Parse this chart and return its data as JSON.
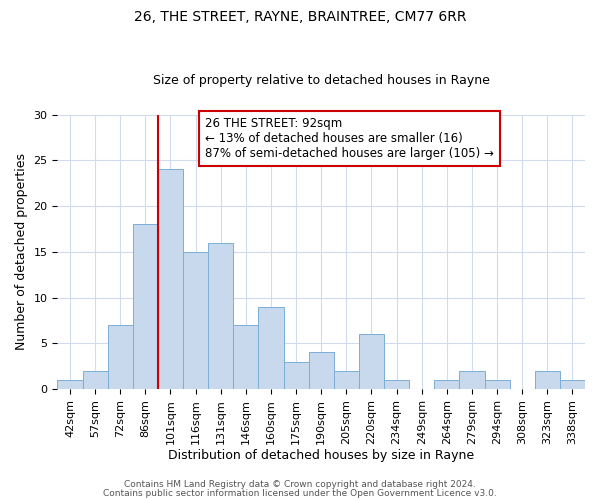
{
  "title": "26, THE STREET, RAYNE, BRAINTREE, CM77 6RR",
  "subtitle": "Size of property relative to detached houses in Rayne",
  "xlabel": "Distribution of detached houses by size in Rayne",
  "ylabel": "Number of detached properties",
  "bar_labels": [
    "42sqm",
    "57sqm",
    "72sqm",
    "86sqm",
    "101sqm",
    "116sqm",
    "131sqm",
    "146sqm",
    "160sqm",
    "175sqm",
    "190sqm",
    "205sqm",
    "220sqm",
    "234sqm",
    "249sqm",
    "264sqm",
    "279sqm",
    "294sqm",
    "308sqm",
    "323sqm",
    "338sqm"
  ],
  "bar_values": [
    1,
    2,
    7,
    18,
    24,
    15,
    16,
    7,
    9,
    3,
    4,
    2,
    6,
    1,
    0,
    1,
    2,
    1,
    0,
    2,
    1
  ],
  "bar_color": "#c8d9ed",
  "bar_edgecolor": "#7bafd4",
  "vline_bar_index": 4,
  "vline_color": "#cc0000",
  "annotation_line1": "26 THE STREET: 92sqm",
  "annotation_line2": "← 13% of detached houses are smaller (16)",
  "annotation_line3": "87% of semi-detached houses are larger (105) →",
  "annotation_box_edgecolor": "#cc0000",
  "ylim": [
    0,
    30
  ],
  "yticks": [
    0,
    5,
    10,
    15,
    20,
    25,
    30
  ],
  "footer1": "Contains HM Land Registry data © Crown copyright and database right 2024.",
  "footer2": "Contains public sector information licensed under the Open Government Licence v3.0.",
  "background_color": "#ffffff",
  "grid_color": "#d0dced",
  "title_fontsize": 10,
  "subtitle_fontsize": 9,
  "axis_label_fontsize": 9,
  "tick_fontsize": 8,
  "annotation_fontsize": 8.5,
  "footer_fontsize": 6.5
}
